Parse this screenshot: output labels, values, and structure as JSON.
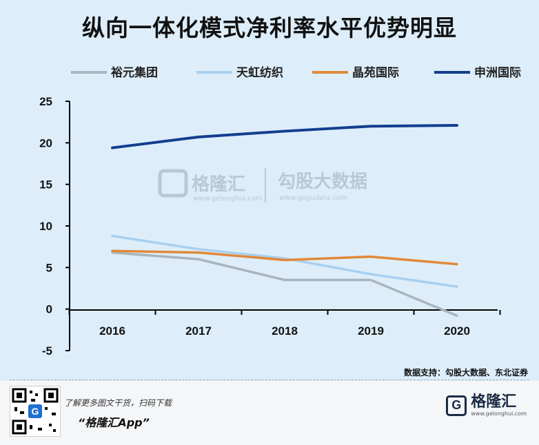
{
  "title": "纵向一体化模式净利率水平优势明显",
  "chart_data": {
    "type": "line",
    "title": "纵向一体化模式净利率水平优势明显",
    "categories": [
      "2016",
      "2017",
      "2018",
      "2019",
      "2020"
    ],
    "series": [
      {
        "name": "裕元集团",
        "color": "#a9b4bc",
        "values": [
          6.8,
          6.0,
          3.5,
          3.5,
          -0.8
        ]
      },
      {
        "name": "天虹纺织",
        "color": "#a9cfee",
        "values": [
          8.8,
          7.2,
          6.1,
          4.2,
          2.7
        ]
      },
      {
        "name": "晶苑国际",
        "color": "#e2883a",
        "values": [
          7.0,
          6.8,
          5.9,
          6.3,
          5.4
        ]
      },
      {
        "name": "申洲国际",
        "color": "#123e8e",
        "values": [
          19.4,
          20.7,
          21.4,
          22.0,
          22.1
        ]
      }
    ],
    "yticks": [
      25,
      20,
      15,
      10,
      5,
      0,
      -5
    ],
    "ylim": [
      -5,
      25
    ],
    "xlabel": "",
    "ylabel": "",
    "legend": "top"
  },
  "watermark": {
    "brand": "格隆汇",
    "brand_url": "www.gelonghui.com",
    "partner": "勾股大数据",
    "partner_url": "www.gogudata.com"
  },
  "source": "数据支持：勾股大数据、东北证券",
  "footer": {
    "promo": "了解更多图文干货，扫码下载",
    "app": "“格隆汇App”",
    "logo_mark": "G",
    "logo_name": "格隆汇",
    "logo_url": "www.gelonghui.com"
  }
}
